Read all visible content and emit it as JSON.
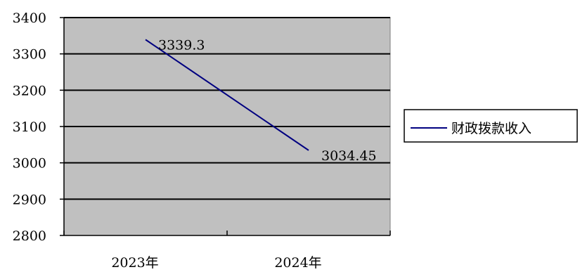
{
  "chart_data": {
    "type": "line",
    "categories": [
      "2023年",
      "2024年"
    ],
    "series": [
      {
        "name": "财政拨款收入",
        "values": [
          3339.3,
          3034.45
        ],
        "labels": [
          "3339.3",
          "3034.45"
        ],
        "color": "#000080"
      }
    ],
    "ylim": [
      2800,
      3400
    ],
    "yticks": [
      2800,
      2900,
      3000,
      3100,
      3200,
      3300,
      3400
    ],
    "grid": true,
    "plot_background": "#c0c0c0",
    "legend_position": "right",
    "title": "",
    "xlabel": "",
    "ylabel": ""
  }
}
